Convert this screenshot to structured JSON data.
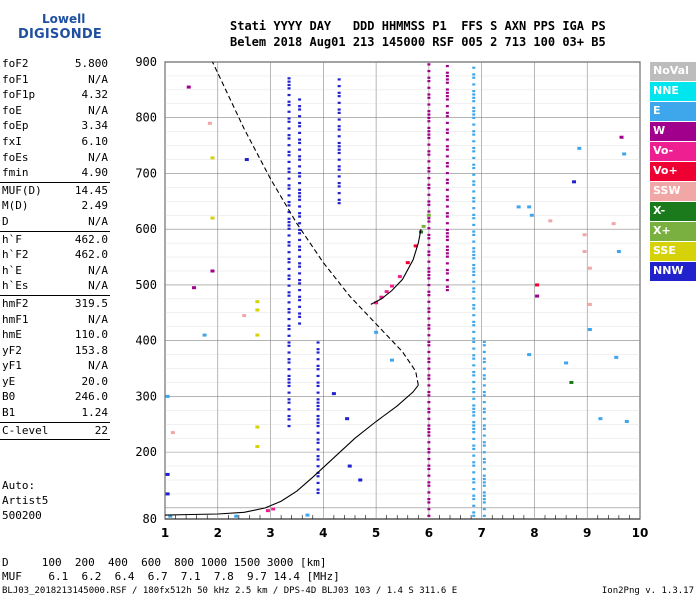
{
  "logo": {
    "line1": "Lowell",
    "line2": "DIGISONDE"
  },
  "header": {
    "line1": "Stati YYYY DAY   DDD HHMMSS P1  FFS S AXN PPS IGA PS",
    "line2": "Belem 2018 Aug01 213 145000 RSF 005 2 713 100 03+ B5"
  },
  "params": [
    {
      "k": "foF2",
      "v": "5.800"
    },
    {
      "k": "foF1",
      "v": "N/A"
    },
    {
      "k": "foF1p",
      "v": "4.32"
    },
    {
      "k": "foE",
      "v": "N/A"
    },
    {
      "k": "foEp",
      "v": "3.34"
    },
    {
      "k": "fxI",
      "v": "6.10"
    },
    {
      "k": "foEs",
      "v": "N/A"
    },
    {
      "k": "fmin",
      "v": "4.90"
    },
    {
      "sep": true
    },
    {
      "k": "MUF(D)",
      "v": "14.45"
    },
    {
      "k": "M(D)",
      "v": "2.49"
    },
    {
      "k": "D",
      "v": "N/A"
    },
    {
      "sep": true
    },
    {
      "k": "h`F",
      "v": "462.0"
    },
    {
      "k": "h`F2",
      "v": "462.0"
    },
    {
      "k": "h`E",
      "v": "N/A"
    },
    {
      "k": "h`Es",
      "v": "N/A"
    },
    {
      "sep": true
    },
    {
      "k": "hmF2",
      "v": "319.5"
    },
    {
      "k": "hmF1",
      "v": "N/A"
    },
    {
      "k": "hmE",
      "v": "110.0"
    },
    {
      "k": "yF2",
      "v": "153.8"
    },
    {
      "k": "yF1",
      "v": "N/A"
    },
    {
      "k": "yE",
      "v": "20.0"
    },
    {
      "k": "B0",
      "v": "246.0"
    },
    {
      "k": "B1",
      "v": "1.24"
    },
    {
      "sep": true
    },
    {
      "k": "C-level",
      "v": "22"
    },
    {
      "sep": true
    }
  ],
  "auto": {
    "l1": "Auto:",
    "l2": "Artist5",
    "l3": "500200"
  },
  "footer": {
    "d_row": "D     100  200  400  600  800 1000 1500 3000 [km]",
    "muf_row": "MUF    6.1  6.2  6.4  6.7  7.1  7.8  9.7 14.4 [MHz]",
    "file": "BLJ03_2018213145000.RSF / 180fx512h 50 kHz 2.5 km / DPS-4D BLJ03 103 / 1.4 S 311.6 E",
    "version": "Ion2Png v. 1.3.17"
  },
  "legend": [
    {
      "label": "NoVal",
      "color": "#bdbdbd"
    },
    {
      "label": "NNE",
      "color": "#00e5ee"
    },
    {
      "label": "E",
      "color": "#3ea6ea"
    },
    {
      "label": "W",
      "color": "#a0008c"
    },
    {
      "label": "Vo-",
      "color": "#ee1f90"
    },
    {
      "label": "Vo+",
      "color": "#ee0033"
    },
    {
      "label": "SSW",
      "color": "#f2a7a7"
    },
    {
      "label": "X-",
      "color": "#1b7a1b"
    },
    {
      "label": "X+",
      "color": "#7ab040"
    },
    {
      "label": "SSE",
      "color": "#d6d20a"
    },
    {
      "label": "NNW",
      "color": "#2222cc"
    }
  ],
  "chart_data": {
    "type": "scatter",
    "xlim": [
      1,
      10
    ],
    "ylim": [
      80,
      900
    ],
    "x_ticks": [
      "1",
      "2",
      "3",
      "4",
      "5",
      "6",
      "7",
      "8",
      "9",
      "10"
    ],
    "y_ticks": [
      "80",
      "200",
      "300",
      "400",
      "500",
      "600",
      "700",
      "800",
      "900"
    ],
    "grid": true,
    "profile_solid": [
      [
        1.0,
        87
      ],
      [
        1.5,
        88
      ],
      [
        2.0,
        89
      ],
      [
        2.5,
        92
      ],
      [
        2.9,
        100
      ],
      [
        3.2,
        112
      ],
      [
        3.5,
        130
      ],
      [
        3.8,
        155
      ],
      [
        4.2,
        190
      ],
      [
        4.6,
        225
      ],
      [
        5.0,
        255
      ],
      [
        5.4,
        283
      ],
      [
        5.7,
        308
      ],
      [
        5.8,
        320
      ]
    ],
    "profile_dashed": [
      [
        5.8,
        320
      ],
      [
        5.75,
        345
      ],
      [
        5.5,
        380
      ],
      [
        5.2,
        410
      ],
      [
        4.9,
        440
      ],
      [
        4.5,
        480
      ],
      [
        4.0,
        540
      ],
      [
        3.5,
        610
      ],
      [
        3.0,
        690
      ],
      [
        2.5,
        780
      ],
      [
        2.0,
        880
      ],
      [
        1.9,
        900
      ]
    ],
    "trace_solid": [
      [
        4.9,
        465
      ],
      [
        5.1,
        475
      ],
      [
        5.3,
        490
      ],
      [
        5.5,
        510
      ],
      [
        5.7,
        545
      ],
      [
        5.8,
        575
      ],
      [
        5.85,
        600
      ]
    ],
    "echo_columns": [
      {
        "x": 6.0,
        "y0": 85,
        "y1": 900,
        "color": "#a0008c"
      },
      {
        "x": 6.35,
        "y0": 490,
        "y1": 900,
        "color": "#a0008c"
      },
      {
        "x": 6.85,
        "y0": 85,
        "y1": 900,
        "color": "#3ea6ea"
      },
      {
        "x": 7.05,
        "y0": 85,
        "y1": 400,
        "color": "#3ea6ea"
      },
      {
        "x": 3.55,
        "y0": 430,
        "y1": 840,
        "color": "#2222cc"
      },
      {
        "x": 3.35,
        "y0": 240,
        "y1": 880,
        "color": "#2222cc"
      },
      {
        "x": 4.3,
        "y0": 640,
        "y1": 870,
        "color": "#2222cc"
      },
      {
        "x": 3.9,
        "y0": 120,
        "y1": 400,
        "color": "#2222cc"
      }
    ],
    "echoes": [
      {
        "x": 5.0,
        "y": 468,
        "c": "#ee1f90"
      },
      {
        "x": 5.1,
        "y": 478,
        "c": "#ee1f90"
      },
      {
        "x": 5.2,
        "y": 488,
        "c": "#ee1f90"
      },
      {
        "x": 5.3,
        "y": 498,
        "c": "#ee1f90"
      },
      {
        "x": 5.45,
        "y": 515,
        "c": "#ee1f90"
      },
      {
        "x": 5.6,
        "y": 540,
        "c": "#ee0033"
      },
      {
        "x": 5.75,
        "y": 570,
        "c": "#ee0033"
      },
      {
        "x": 5.85,
        "y": 595,
        "c": "#1b7a1b"
      },
      {
        "x": 5.9,
        "y": 605,
        "c": "#7ab040"
      },
      {
        "x": 6.0,
        "y": 625,
        "c": "#7ab040"
      },
      {
        "x": 2.95,
        "y": 95,
        "c": "#ee1f90"
      },
      {
        "x": 3.05,
        "y": 98,
        "c": "#ee1f90"
      },
      {
        "x": 1.45,
        "y": 855,
        "c": "#a0008c"
      },
      {
        "x": 1.85,
        "y": 790,
        "c": "#f2a7a7"
      },
      {
        "x": 1.9,
        "y": 728,
        "c": "#d6d20a"
      },
      {
        "x": 1.9,
        "y": 620,
        "c": "#d6d20a"
      },
      {
        "x": 1.9,
        "y": 525,
        "c": "#a0008c"
      },
      {
        "x": 2.5,
        "y": 445,
        "c": "#f2a7a7"
      },
      {
        "x": 2.75,
        "y": 470,
        "c": "#d6d20a"
      },
      {
        "x": 2.75,
        "y": 455,
        "c": "#d6d20a"
      },
      {
        "x": 2.75,
        "y": 410,
        "c": "#d6d20a"
      },
      {
        "x": 2.75,
        "y": 245,
        "c": "#d6d20a"
      },
      {
        "x": 2.75,
        "y": 210,
        "c": "#d6d20a"
      },
      {
        "x": 1.55,
        "y": 495,
        "c": "#a0008c"
      },
      {
        "x": 1.75,
        "y": 410,
        "c": "#3ea6ea"
      },
      {
        "x": 1.05,
        "y": 300,
        "c": "#3ea6ea"
      },
      {
        "x": 1.05,
        "y": 160,
        "c": "#2222cc"
      },
      {
        "x": 1.05,
        "y": 125,
        "c": "#2222cc"
      },
      {
        "x": 1.15,
        "y": 235,
        "c": "#f2a7a7"
      },
      {
        "x": 1.1,
        "y": 85,
        "c": "#3ea6ea"
      },
      {
        "x": 2.35,
        "y": 85,
        "c": "#3ea6ea"
      },
      {
        "x": 3.7,
        "y": 87,
        "c": "#3ea6ea"
      },
      {
        "x": 2.55,
        "y": 725,
        "c": "#2222cc"
      },
      {
        "x": 4.2,
        "y": 305,
        "c": "#2222cc"
      },
      {
        "x": 4.45,
        "y": 260,
        "c": "#2222cc"
      },
      {
        "x": 4.5,
        "y": 175,
        "c": "#2222cc"
      },
      {
        "x": 4.7,
        "y": 150,
        "c": "#2222cc"
      },
      {
        "x": 5.0,
        "y": 415,
        "c": "#3ea6ea"
      },
      {
        "x": 5.3,
        "y": 365,
        "c": "#3ea6ea"
      },
      {
        "x": 7.9,
        "y": 375,
        "c": "#3ea6ea"
      },
      {
        "x": 7.9,
        "y": 640,
        "c": "#3ea6ea"
      },
      {
        "x": 7.95,
        "y": 625,
        "c": "#3ea6ea"
      },
      {
        "x": 8.05,
        "y": 500,
        "c": "#ee0033"
      },
      {
        "x": 8.05,
        "y": 480,
        "c": "#a0008c"
      },
      {
        "x": 8.3,
        "y": 615,
        "c": "#f2a7a7"
      },
      {
        "x": 8.6,
        "y": 360,
        "c": "#3ea6ea"
      },
      {
        "x": 8.7,
        "y": 325,
        "c": "#1b7a1b"
      },
      {
        "x": 8.75,
        "y": 685,
        "c": "#2222cc"
      },
      {
        "x": 8.85,
        "y": 745,
        "c": "#3ea6ea"
      },
      {
        "x": 8.95,
        "y": 590,
        "c": "#f2a7a7"
      },
      {
        "x": 8.95,
        "y": 560,
        "c": "#f2a7a7"
      },
      {
        "x": 9.05,
        "y": 530,
        "c": "#f2a7a7"
      },
      {
        "x": 9.05,
        "y": 465,
        "c": "#f2a7a7"
      },
      {
        "x": 9.05,
        "y": 420,
        "c": "#3ea6ea"
      },
      {
        "x": 9.25,
        "y": 260,
        "c": "#3ea6ea"
      },
      {
        "x": 9.65,
        "y": 765,
        "c": "#a0008c"
      },
      {
        "x": 9.7,
        "y": 735,
        "c": "#3ea6ea"
      },
      {
        "x": 9.75,
        "y": 255,
        "c": "#3ea6ea"
      },
      {
        "x": 9.6,
        "y": 560,
        "c": "#3ea6ea"
      },
      {
        "x": 9.5,
        "y": 610,
        "c": "#f2a7a7"
      },
      {
        "x": 9.55,
        "y": 370,
        "c": "#3ea6ea"
      },
      {
        "x": 7.7,
        "y": 640,
        "c": "#3ea6ea"
      }
    ]
  }
}
